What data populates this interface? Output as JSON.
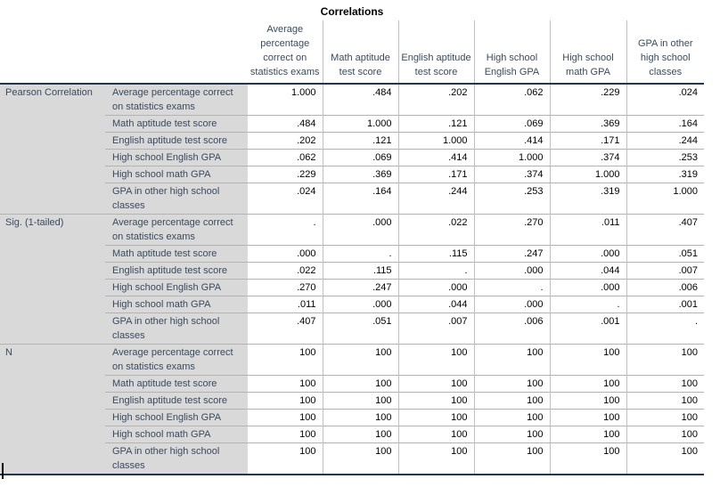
{
  "title": "Correlations",
  "columns": [
    "Average percentage correct on statistics exams",
    "Math aptitude test score",
    "English aptitude test score",
    "High school English GPA",
    "High school math GPA",
    "GPA in other high school classes"
  ],
  "variables": [
    "Average percentage correct on statistics exams",
    "Math aptitude test score",
    "English aptitude test score",
    "High school English GPA",
    "High school math GPA",
    "GPA in other high school classes"
  ],
  "sections": [
    {
      "label": "Pearson Correlation",
      "rows": [
        [
          "1.000",
          ".484",
          ".202",
          ".062",
          ".229",
          ".024"
        ],
        [
          ".484",
          "1.000",
          ".121",
          ".069",
          ".369",
          ".164"
        ],
        [
          ".202",
          ".121",
          "1.000",
          ".414",
          ".171",
          ".244"
        ],
        [
          ".062",
          ".069",
          ".414",
          "1.000",
          ".374",
          ".253"
        ],
        [
          ".229",
          ".369",
          ".171",
          ".374",
          "1.000",
          ".319"
        ],
        [
          ".024",
          ".164",
          ".244",
          ".253",
          ".319",
          "1.000"
        ]
      ]
    },
    {
      "label": "Sig. (1-tailed)",
      "rows": [
        [
          ".",
          ".000",
          ".022",
          ".270",
          ".011",
          ".407"
        ],
        [
          ".000",
          ".",
          ".115",
          ".247",
          ".000",
          ".051"
        ],
        [
          ".022",
          ".115",
          ".",
          ".000",
          ".044",
          ".007"
        ],
        [
          ".270",
          ".247",
          ".000",
          ".",
          ".000",
          ".006"
        ],
        [
          ".011",
          ".000",
          ".044",
          ".000",
          ".",
          ".001"
        ],
        [
          ".407",
          ".051",
          ".007",
          ".006",
          ".001",
          "."
        ]
      ]
    },
    {
      "label": "N",
      "rows": [
        [
          "100",
          "100",
          "100",
          "100",
          "100",
          "100"
        ],
        [
          "100",
          "100",
          "100",
          "100",
          "100",
          "100"
        ],
        [
          "100",
          "100",
          "100",
          "100",
          "100",
          "100"
        ],
        [
          "100",
          "100",
          "100",
          "100",
          "100",
          "100"
        ],
        [
          "100",
          "100",
          "100",
          "100",
          "100",
          "100"
        ],
        [
          "100",
          "100",
          "100",
          "100",
          "100",
          "100"
        ]
      ]
    }
  ],
  "colors": {
    "label_background": "#d9d9d9",
    "label_text": "#3a4a5e",
    "value_text": "#000000",
    "rule_dark": "#24364a",
    "rule_light": "#b3b3b3",
    "column_rule": "#bfbfbf",
    "cursor": "#000000"
  },
  "cursor_icon": "text-cursor"
}
